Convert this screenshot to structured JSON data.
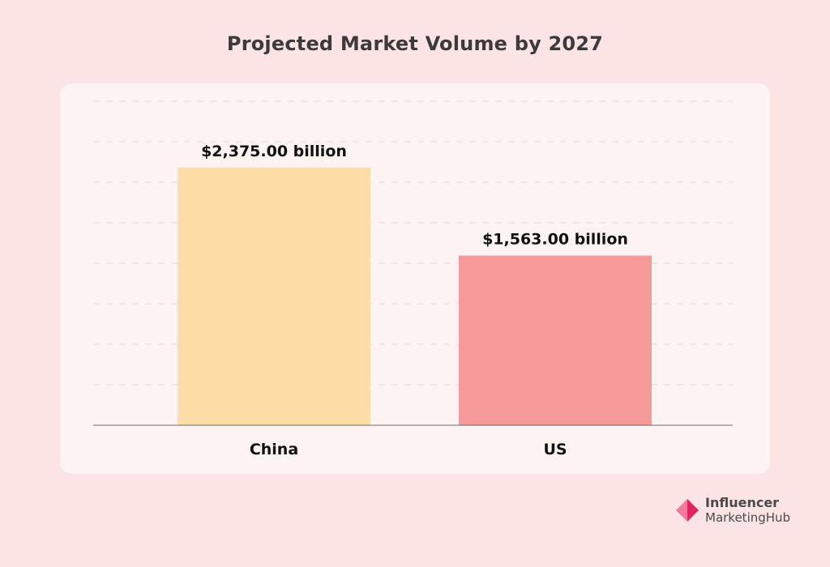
{
  "chart_data": {
    "type": "bar",
    "title": "Projected Market Volume by 2027",
    "categories": [
      "China",
      "US"
    ],
    "values": [
      2375.0,
      1563.0
    ],
    "value_labels": [
      "$2,375.00 billion",
      "$1,563.00 billion"
    ],
    "bar_colors": [
      "#fedea6",
      "#f59a99"
    ],
    "ylim": [
      0,
      3000
    ],
    "grid": true,
    "xlabel": "",
    "ylabel": ""
  },
  "brand": {
    "line1": "Influencer",
    "line2_a": "Marketing",
    "line2_b": "Hub",
    "mark_color_dark": "#e0245e",
    "mark_color_light": "#f47a9b"
  }
}
